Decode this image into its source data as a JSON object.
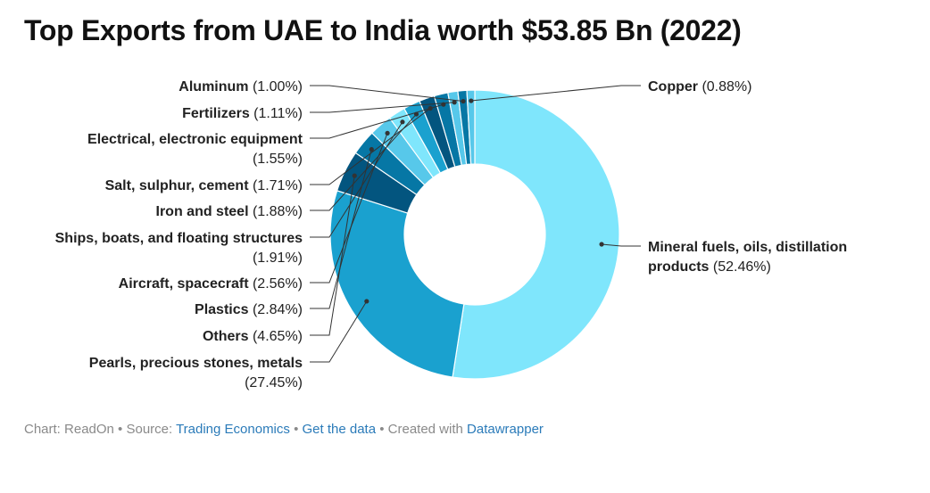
{
  "title": "Top Exports from UAE to India worth $53.85 Bn (2022)",
  "colors": {
    "cyan_light": "#7fe6fc",
    "sky": "#57c8ea",
    "blue_mid": "#1aa1cf",
    "blue_dark": "#0677a5",
    "navy": "#03557f",
    "leader": "#333333"
  },
  "chart_data": {
    "type": "pie",
    "subtype": "donut",
    "units": "%",
    "slices": [
      {
        "label": "Mineral fuels, oils, distillation products",
        "value": 52.46,
        "display": "(52.46%)",
        "color": "#7fe6fc"
      },
      {
        "label": "Pearls, precious stones, metals",
        "value": 27.45,
        "display": "(27.45%)",
        "color": "#1aa1cf"
      },
      {
        "label": "Others",
        "value": 4.65,
        "display": "(4.65%)",
        "color": "#03557f"
      },
      {
        "label": "Plastics",
        "value": 2.84,
        "display": "(2.84%)",
        "color": "#0677a5"
      },
      {
        "label": "Aircraft, spacecraft",
        "value": 2.56,
        "display": "(2.56%)",
        "color": "#57c8ea"
      },
      {
        "label": "Ships, boats, and floating structures",
        "value": 1.91,
        "display": "(1.91%)",
        "color": "#7fe6fc"
      },
      {
        "label": "Iron and steel",
        "value": 1.88,
        "display": "(1.88%)",
        "color": "#1aa1cf"
      },
      {
        "label": "Salt, sulphur, cement",
        "value": 1.71,
        "display": "(1.71%)",
        "color": "#03557f"
      },
      {
        "label": "Electrical, electronic equipment",
        "value": 1.55,
        "display": "(1.55%)",
        "color": "#0677a5"
      },
      {
        "label": "Fertilizers",
        "value": 1.11,
        "display": "(1.11%)",
        "color": "#57c8ea"
      },
      {
        "label": "Aluminum",
        "value": 1.0,
        "display": "(1.00%)",
        "color": "#0677a5"
      },
      {
        "label": "Copper",
        "value": 0.88,
        "display": "(0.88%)",
        "color": "#57c8ea"
      }
    ]
  },
  "footer": {
    "prefix": "Chart: ReadOn • Source: ",
    "source_link": "Trading Economics",
    "sep1": " • ",
    "data_link": "Get the data",
    "sep2": " • Created with ",
    "tool_link": "Datawrapper"
  }
}
